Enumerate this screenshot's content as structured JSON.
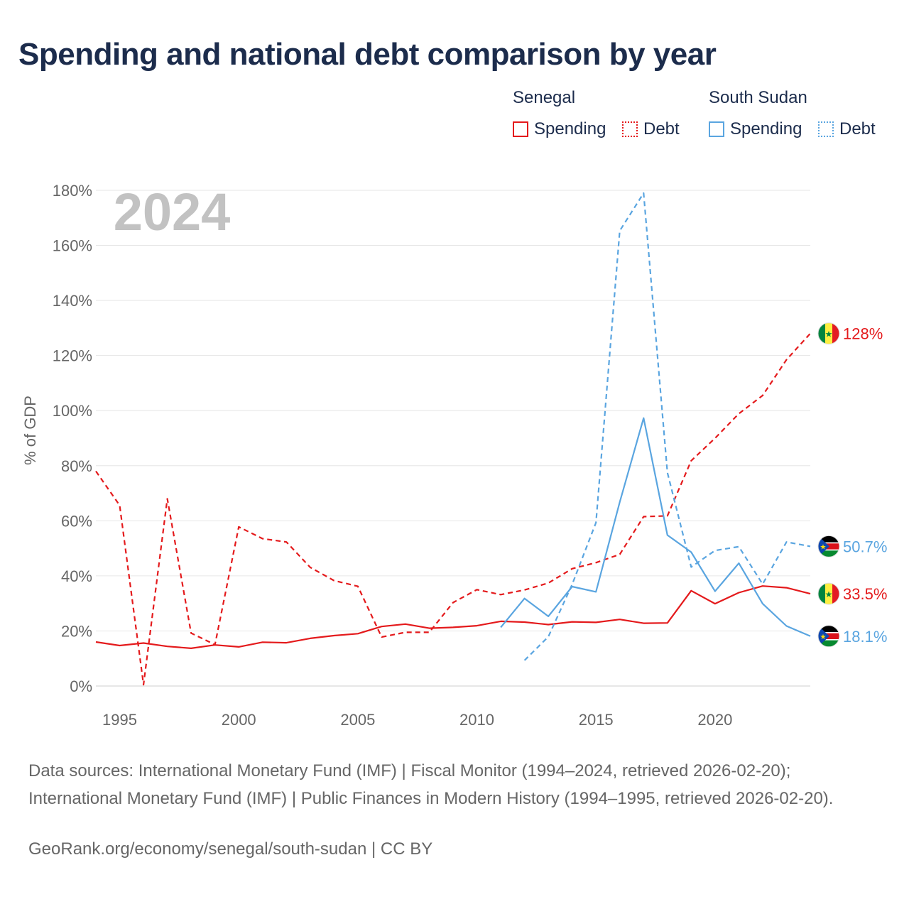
{
  "title": "Spending and national debt comparison by year",
  "legend": {
    "groups": [
      {
        "country": "Senegal",
        "color": "#e41a1c",
        "items": [
          {
            "label": "Spending",
            "style": "solid"
          },
          {
            "label": "Debt",
            "style": "dotted"
          }
        ]
      },
      {
        "country": "South Sudan",
        "color": "#5aa5e0",
        "items": [
          {
            "label": "Spending",
            "style": "solid"
          },
          {
            "label": "Debt",
            "style": "dotted"
          }
        ]
      }
    ]
  },
  "chart_data": {
    "type": "line",
    "title": "Spending and national debt comparison by year",
    "xlabel": "",
    "ylabel": "% of GDP",
    "xlim": [
      1994,
      2024
    ],
    "ylim": [
      0,
      180
    ],
    "x_ticks": [
      1995,
      2000,
      2005,
      2010,
      2015,
      2020
    ],
    "y_ticks": [
      0,
      20,
      40,
      60,
      80,
      100,
      120,
      140,
      160,
      180
    ],
    "y_tick_labels": [
      "0%",
      "20%",
      "40%",
      "60%",
      "80%",
      "100%",
      "120%",
      "140%",
      "160%",
      "180%"
    ],
    "watermark_year": "2024",
    "grid": true,
    "series": [
      {
        "name": "Senegal Spending",
        "country": "Senegal",
        "color": "#e41a1c",
        "dash": false,
        "x": [
          1994,
          1995,
          1996,
          1997,
          1998,
          1999,
          2000,
          2001,
          2002,
          2003,
          2004,
          2005,
          2006,
          2007,
          2008,
          2009,
          2010,
          2011,
          2012,
          2013,
          2014,
          2015,
          2016,
          2017,
          2018,
          2019,
          2020,
          2021,
          2022,
          2023,
          2024
        ],
        "values": [
          16,
          14.7,
          15.6,
          14.4,
          13.7,
          14.9,
          14.2,
          15.9,
          15.7,
          17.3,
          18.3,
          19,
          21.6,
          22.5,
          21,
          21.3,
          21.9,
          23.5,
          23.2,
          22.3,
          23.3,
          23.1,
          24.2,
          22.8,
          22.9,
          34.6,
          29.9,
          33.9,
          36.3,
          35.7,
          33.5
        ],
        "end_label": "33.5%",
        "flag": "senegal"
      },
      {
        "name": "Senegal Debt",
        "country": "Senegal",
        "color": "#e41a1c",
        "dash": true,
        "x": [
          1994,
          1995,
          1996,
          1997,
          1998,
          1999,
          2000,
          2001,
          2002,
          2003,
          2004,
          2005,
          2006,
          2007,
          2008,
          2009,
          2010,
          2011,
          2012,
          2013,
          2014,
          2015,
          2016,
          2017,
          2018,
          2019,
          2020,
          2021,
          2022,
          2023,
          2024
        ],
        "values": [
          78,
          65.6,
          0.5,
          68,
          19.2,
          15,
          57.8,
          53.5,
          52.3,
          43.1,
          38.3,
          36.2,
          17.8,
          19.5,
          19.5,
          30.3,
          35,
          33.2,
          34.9,
          37.4,
          42.6,
          44.8,
          47.8,
          61.5,
          61.8,
          81.8,
          90,
          98.9,
          105.5,
          118.5,
          128
        ],
        "end_label": "128%",
        "flag": "senegal"
      },
      {
        "name": "South Sudan Spending",
        "country": "South Sudan",
        "color": "#5aa5e0",
        "dash": false,
        "x": [
          2011,
          2012,
          2013,
          2014,
          2015,
          2016,
          2017,
          2018,
          2019,
          2020,
          2021,
          2022,
          2023,
          2024
        ],
        "values": [
          21.3,
          31.8,
          25.3,
          36.1,
          34.2,
          66.8,
          97.3,
          54.8,
          48.6,
          34.4,
          44.6,
          29.9,
          21.8,
          18.1
        ],
        "end_label": "18.1%",
        "flag": "south-sudan"
      },
      {
        "name": "South Sudan Debt",
        "country": "South Sudan",
        "color": "#5aa5e0",
        "dash": true,
        "x": [
          2012,
          2013,
          2014,
          2015,
          2016,
          2017,
          2018,
          2019,
          2020,
          2021,
          2022,
          2023,
          2024
        ],
        "values": [
          9.3,
          17.9,
          36.9,
          59.3,
          165.3,
          179,
          77.5,
          43.2,
          49.2,
          50.6,
          37,
          52.3,
          50.7
        ],
        "end_label": "50.7%",
        "flag": "south-sudan"
      }
    ]
  },
  "source": "Data sources: International Monetary Fund (IMF) | Fiscal Monitor (1994–2024, retrieved 2026-02-20); International Monetary Fund (IMF) | Public Finances in Modern History (1994–1995, retrieved 2026-02-20).",
  "credit": "GeoRank.org/economy/senegal/south-sudan | CC BY"
}
